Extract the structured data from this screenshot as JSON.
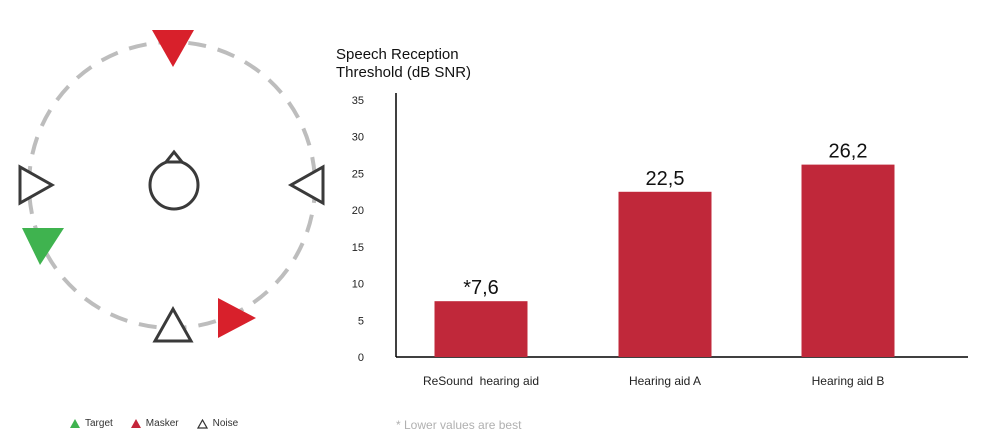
{
  "diagram": {
    "legend": [
      {
        "label": "Target",
        "color": "#3fb34f",
        "style": "filled"
      },
      {
        "label": "Masker",
        "color": "#c4253a",
        "style": "filled"
      },
      {
        "label": "Noise",
        "color": "#3a3a3a",
        "style": "outline"
      }
    ],
    "colors": {
      "target": "#3fb34f",
      "masker": "#d8202b",
      "noise": "#3a3a3a",
      "ring": "#bdbdbd"
    }
  },
  "chart_data": {
    "type": "bar",
    "ylabel_line1": "Speech Reception",
    "ylabel_line2": "Threshold (dB SNR)",
    "categories": [
      "ReSound  hearing aid",
      "Hearing aid A",
      "Hearing aid B"
    ],
    "values": [
      7.6,
      22.5,
      26.2
    ],
    "data_labels": [
      "*7,6",
      "22,5",
      "26,2"
    ],
    "yticks": [
      "0",
      "5",
      "10",
      "15",
      "20",
      "25",
      "30",
      "35"
    ],
    "ylim": [
      0,
      35
    ],
    "bar_color": "#c0283a",
    "grid": false,
    "footnote": "* Lower values are best"
  }
}
